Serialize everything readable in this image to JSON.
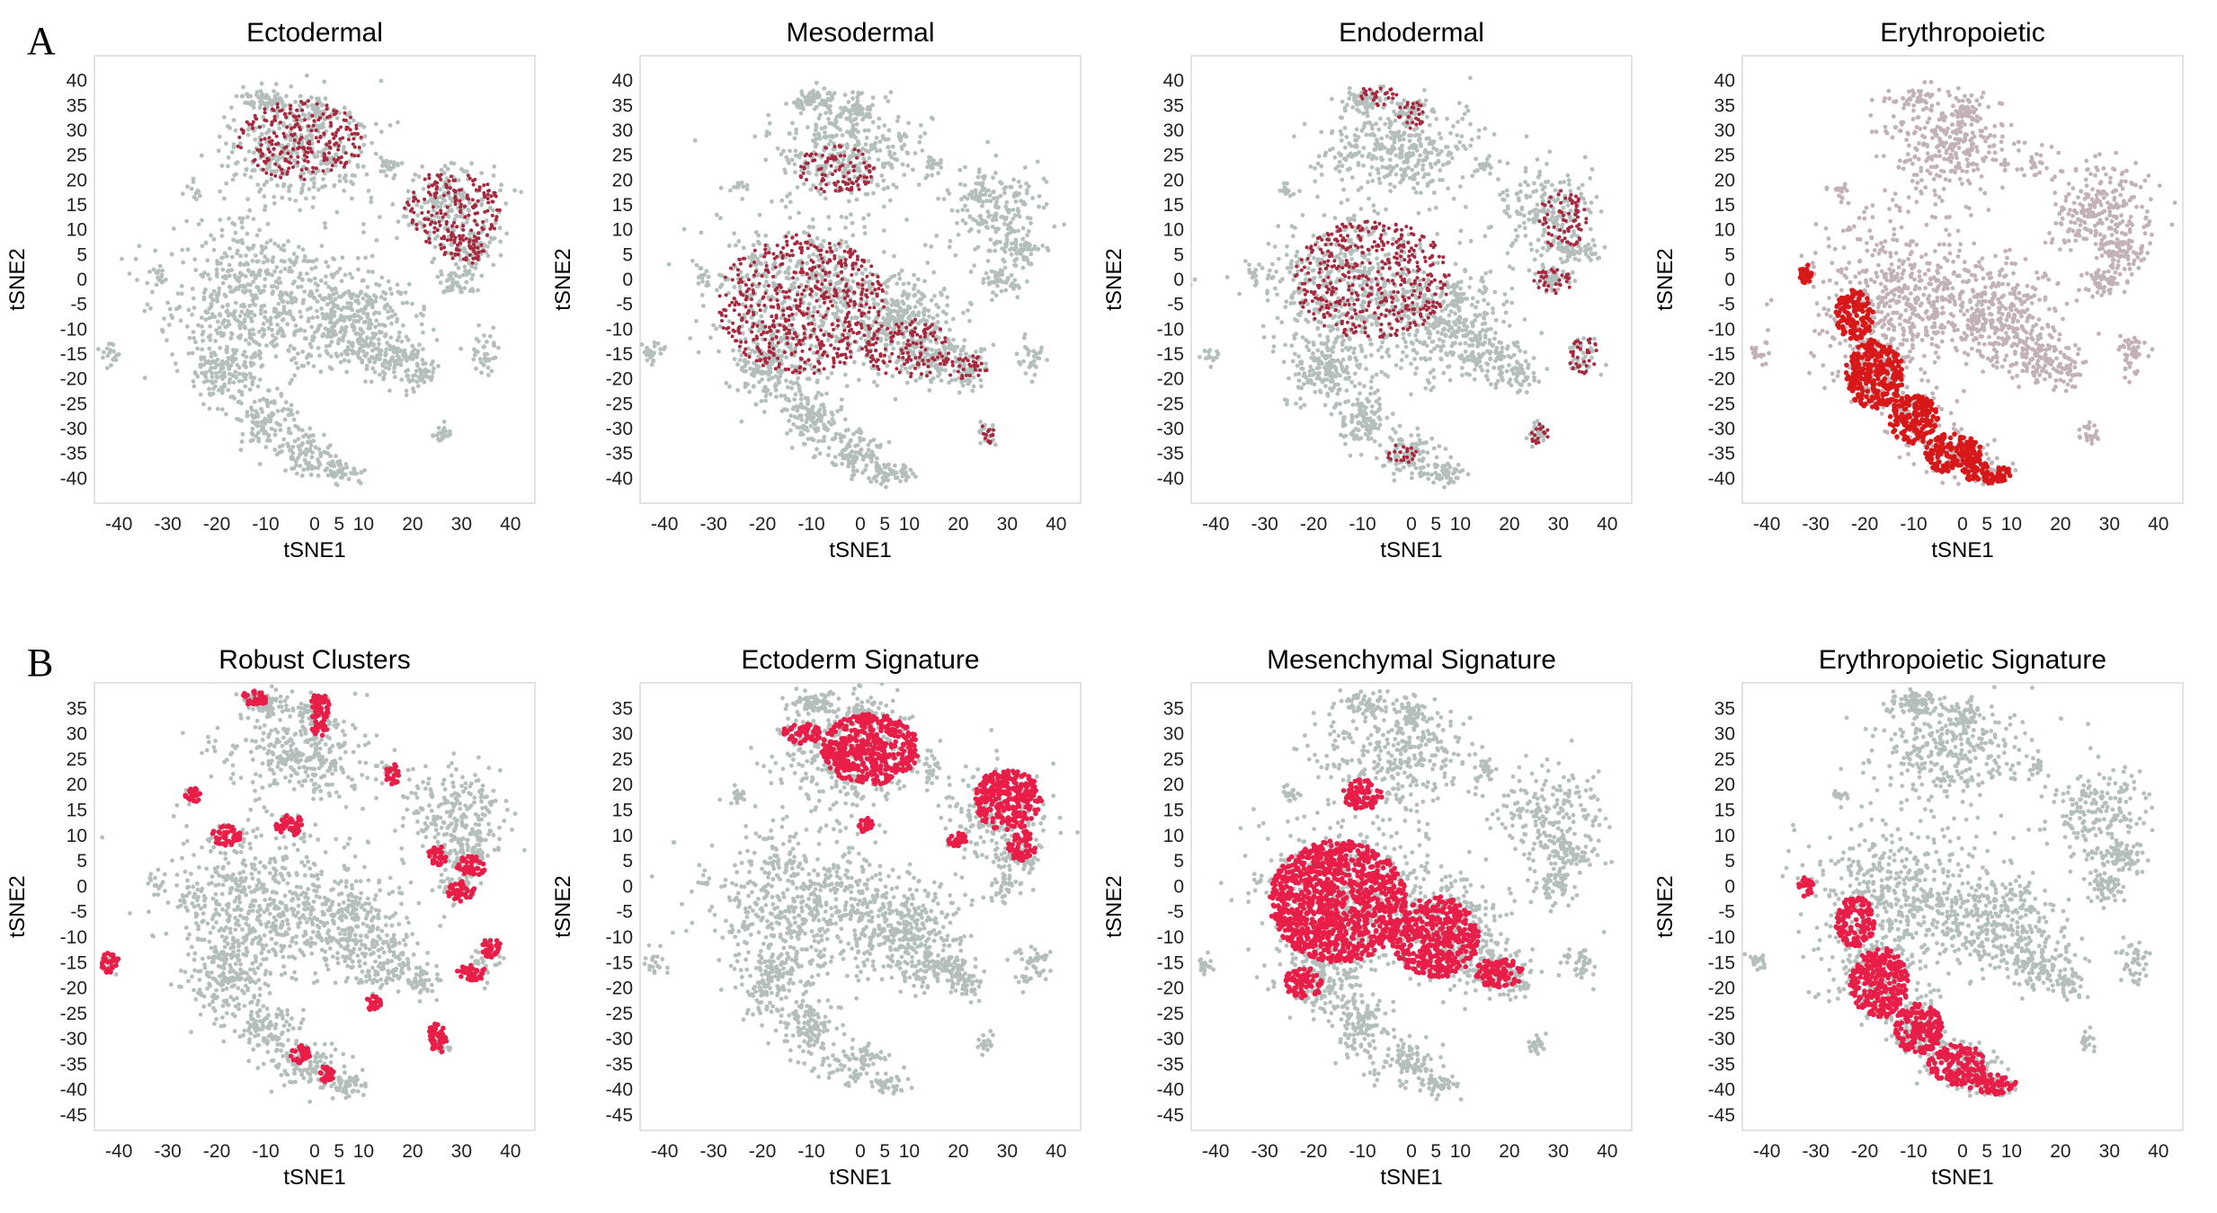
{
  "figure": {
    "rows": [
      {
        "letter": "A"
      },
      {
        "letter": "B"
      }
    ]
  },
  "colors": {
    "background_cells": "#b4bfbc",
    "background_cells_erythro_A": "#c2b2b8",
    "highlight_dark": "#a8283e",
    "highlight_bright": "#e81e48",
    "highlight_red": "#d81818",
    "frame": "#d8d8d8",
    "tick_text": "#222222"
  },
  "chart_data": [
    {
      "type": "scatter",
      "row": 0,
      "col": 0,
      "title": "Ectodermal",
      "xlabel": "tSNE1",
      "ylabel": "tSNE2",
      "xlim": [
        -45,
        45
      ],
      "ylim": [
        -45,
        45
      ],
      "xticks": [
        -40,
        -30,
        -20,
        -10,
        0,
        5,
        10,
        20,
        30,
        40
      ],
      "yticks": [
        -40,
        -35,
        -30,
        -25,
        -20,
        -15,
        -10,
        -5,
        0,
        5,
        10,
        15,
        20,
        25,
        30,
        35,
        40
      ],
      "grid": false,
      "background_color": "#b4bfbc",
      "highlight_color": "#a8283e",
      "highlight_style": "sparse",
      "highlight_regions": [
        {
          "cx": -3,
          "cy": 28,
          "rx": 13,
          "ry": 8
        },
        {
          "cx": 28,
          "cy": 14,
          "rx": 10,
          "ry": 8
        },
        {
          "cx": 31,
          "cy": 6,
          "rx": 5,
          "ry": 3
        }
      ]
    },
    {
      "type": "scatter",
      "row": 0,
      "col": 1,
      "title": "Mesodermal",
      "xlabel": "tSNE1",
      "ylabel": "tSNE2",
      "xlim": [
        -45,
        45
      ],
      "ylim": [
        -45,
        45
      ],
      "xticks": [
        -40,
        -30,
        -20,
        -10,
        0,
        5,
        10,
        20,
        30,
        40
      ],
      "yticks": [
        -40,
        -35,
        -30,
        -25,
        -20,
        -15,
        -10,
        -5,
        0,
        5,
        10,
        15,
        20,
        25,
        30,
        35,
        40
      ],
      "grid": false,
      "background_color": "#b4bfbc",
      "highlight_color": "#a8283e",
      "highlight_style": "sparse",
      "highlight_regions": [
        {
          "cx": -12,
          "cy": -5,
          "rx": 17,
          "ry": 14
        },
        {
          "cx": 10,
          "cy": -14,
          "rx": 9,
          "ry": 6
        },
        {
          "cx": 22,
          "cy": -18,
          "rx": 4,
          "ry": 3
        },
        {
          "cx": 26,
          "cy": -31,
          "rx": 2,
          "ry": 2
        },
        {
          "cx": -5,
          "cy": 22,
          "rx": 8,
          "ry": 5
        }
      ]
    },
    {
      "type": "scatter",
      "row": 0,
      "col": 2,
      "title": "Endodermal",
      "xlabel": "tSNE1",
      "ylabel": "tSNE2",
      "xlim": [
        -45,
        45
      ],
      "ylim": [
        -45,
        45
      ],
      "xticks": [
        -40,
        -30,
        -20,
        -10,
        0,
        5,
        10,
        20,
        30,
        40
      ],
      "yticks": [
        -40,
        -35,
        -30,
        -25,
        -20,
        -15,
        -10,
        -5,
        0,
        5,
        10,
        15,
        20,
        25,
        30,
        35,
        40
      ],
      "grid": false,
      "background_color": "#b4bfbc",
      "highlight_color": "#a8283e",
      "highlight_style": "sparse",
      "highlight_regions": [
        {
          "cx": -7,
          "cy": 37,
          "rx": 4,
          "ry": 2
        },
        {
          "cx": 0,
          "cy": 33,
          "rx": 3,
          "ry": 3
        },
        {
          "cx": -8,
          "cy": 0,
          "rx": 16,
          "ry": 12
        },
        {
          "cx": 29,
          "cy": 0,
          "rx": 4,
          "ry": 3
        },
        {
          "cx": 35,
          "cy": -15,
          "rx": 3,
          "ry": 4
        },
        {
          "cx": -2,
          "cy": -35,
          "rx": 3,
          "ry": 2
        },
        {
          "cx": 26,
          "cy": -31,
          "rx": 2,
          "ry": 2
        },
        {
          "cx": 31,
          "cy": 12,
          "rx": 5,
          "ry": 6
        }
      ]
    },
    {
      "type": "scatter",
      "row": 0,
      "col": 3,
      "title": "Erythropoietic",
      "xlabel": "tSNE1",
      "ylabel": "tSNE2",
      "xlim": [
        -45,
        45
      ],
      "ylim": [
        -45,
        45
      ],
      "xticks": [
        -40,
        -30,
        -20,
        -10,
        0,
        5,
        10,
        20,
        30,
        40
      ],
      "yticks": [
        -40,
        -35,
        -30,
        -25,
        -20,
        -15,
        -10,
        -5,
        0,
        5,
        10,
        15,
        20,
        25,
        30,
        35,
        40
      ],
      "grid": false,
      "background_color": "#c2b2b8",
      "highlight_color": "#d81818",
      "highlight_style": "dense",
      "highlight_regions": [
        {
          "cx": -22,
          "cy": -7,
          "rx": 4,
          "ry": 5
        },
        {
          "cx": -18,
          "cy": -19,
          "rx": 6,
          "ry": 7
        },
        {
          "cx": -10,
          "cy": -28,
          "rx": 5,
          "ry": 5
        },
        {
          "cx": -2,
          "cy": -35,
          "rx": 6,
          "ry": 4
        },
        {
          "cx": 5,
          "cy": -39,
          "rx": 5,
          "ry": 2
        },
        {
          "cx": -32,
          "cy": 1,
          "rx": 1.5,
          "ry": 2
        }
      ]
    },
    {
      "type": "scatter",
      "row": 1,
      "col": 0,
      "title": "Robust Clusters",
      "xlabel": "tSNE1",
      "ylabel": "tSNE2",
      "xlim": [
        -45,
        45
      ],
      "ylim": [
        -48,
        40
      ],
      "xticks": [
        -40,
        -30,
        -20,
        -10,
        0,
        5,
        10,
        20,
        30,
        40
      ],
      "yticks": [
        -45,
        -40,
        -35,
        -30,
        -25,
        -20,
        -15,
        -10,
        -5,
        0,
        5,
        10,
        15,
        20,
        25,
        30,
        35
      ],
      "grid": false,
      "background_color": "#b4bfbc",
      "highlight_color": "#e81e48",
      "highlight_style": "dense",
      "highlight_regions": [
        {
          "cx": -12,
          "cy": 37,
          "rx": 3,
          "ry": 1.5
        },
        {
          "cx": 1,
          "cy": 35,
          "rx": 2,
          "ry": 3
        },
        {
          "cx": 1,
          "cy": 31,
          "rx": 1.5,
          "ry": 1.5
        },
        {
          "cx": 16,
          "cy": 22,
          "rx": 1.5,
          "ry": 2
        },
        {
          "cx": -25,
          "cy": 18,
          "rx": 2,
          "ry": 1.5
        },
        {
          "cx": -18,
          "cy": 10,
          "rx": 3,
          "ry": 2
        },
        {
          "cx": -5,
          "cy": 12,
          "rx": 3,
          "ry": 2
        },
        {
          "cx": 25,
          "cy": 6,
          "rx": 2,
          "ry": 2
        },
        {
          "cx": 32,
          "cy": 4,
          "rx": 3,
          "ry": 2
        },
        {
          "cx": 30,
          "cy": -1,
          "rx": 3,
          "ry": 2
        },
        {
          "cx": 36,
          "cy": -12,
          "rx": 2,
          "ry": 2
        },
        {
          "cx": 32,
          "cy": -17,
          "rx": 3,
          "ry": 1.5
        },
        {
          "cx": -42,
          "cy": -15,
          "rx": 2,
          "ry": 2
        },
        {
          "cx": 25,
          "cy": -30,
          "rx": 2,
          "ry": 3
        },
        {
          "cx": -3,
          "cy": -33,
          "rx": 2,
          "ry": 2
        },
        {
          "cx": 2,
          "cy": -37,
          "rx": 2,
          "ry": 1.5
        },
        {
          "cx": 12,
          "cy": -23,
          "rx": 1.5,
          "ry": 1.5
        }
      ]
    },
    {
      "type": "scatter",
      "row": 1,
      "col": 1,
      "title": "Ectoderm Signature",
      "xlabel": "tSNE1",
      "ylabel": "tSNE2",
      "xlim": [
        -45,
        45
      ],
      "ylim": [
        -48,
        40
      ],
      "xticks": [
        -40,
        -30,
        -20,
        -10,
        0,
        5,
        10,
        20,
        30,
        40
      ],
      "yticks": [
        -45,
        -40,
        -35,
        -30,
        -25,
        -20,
        -15,
        -10,
        -5,
        0,
        5,
        10,
        15,
        20,
        25,
        30,
        35
      ],
      "grid": false,
      "background_color": "#b4bfbc",
      "highlight_color": "#e81e48",
      "highlight_style": "dense",
      "highlight_regions": [
        {
          "cx": 2,
          "cy": 27,
          "rx": 10,
          "ry": 7
        },
        {
          "cx": -12,
          "cy": 30,
          "rx": 4,
          "ry": 2
        },
        {
          "cx": 30,
          "cy": 17,
          "rx": 7,
          "ry": 6
        },
        {
          "cx": 33,
          "cy": 8,
          "rx": 3,
          "ry": 3
        },
        {
          "cx": 20,
          "cy": 9,
          "rx": 2,
          "ry": 1.5
        },
        {
          "cx": 1,
          "cy": 12,
          "rx": 1.5,
          "ry": 1.5
        }
      ]
    },
    {
      "type": "scatter",
      "row": 1,
      "col": 2,
      "title": "Mesenchymal Signature",
      "xlabel": "tSNE1",
      "ylabel": "tSNE2",
      "xlim": [
        -45,
        45
      ],
      "ylim": [
        -48,
        40
      ],
      "xticks": [
        -40,
        -30,
        -20,
        -10,
        0,
        5,
        10,
        20,
        30,
        40
      ],
      "yticks": [
        -45,
        -40,
        -35,
        -30,
        -25,
        -20,
        -15,
        -10,
        -5,
        0,
        5,
        10,
        15,
        20,
        25,
        30,
        35
      ],
      "grid": false,
      "background_color": "#b4bfbc",
      "highlight_color": "#e81e48",
      "highlight_style": "dense",
      "highlight_regions": [
        {
          "cx": -15,
          "cy": -3,
          "rx": 14,
          "ry": 12
        },
        {
          "cx": 5,
          "cy": -10,
          "rx": 9,
          "ry": 8
        },
        {
          "cx": 18,
          "cy": -17,
          "rx": 5,
          "ry": 3
        },
        {
          "cx": -10,
          "cy": 18,
          "rx": 4,
          "ry": 3
        },
        {
          "cx": -22,
          "cy": -19,
          "rx": 4,
          "ry": 3
        }
      ]
    },
    {
      "type": "scatter",
      "row": 1,
      "col": 3,
      "title": "Erythropoietic Signature",
      "xlabel": "tSNE1",
      "ylabel": "tSNE2",
      "xlim": [
        -45,
        45
      ],
      "ylim": [
        -48,
        40
      ],
      "xticks": [
        -40,
        -30,
        -20,
        -10,
        0,
        5,
        10,
        20,
        30,
        40
      ],
      "yticks": [
        -45,
        -40,
        -35,
        -30,
        -25,
        -20,
        -15,
        -10,
        -5,
        0,
        5,
        10,
        15,
        20,
        25,
        30,
        35
      ],
      "grid": false,
      "background_color": "#b4bfbc",
      "highlight_color": "#e81e48",
      "highlight_style": "dense",
      "highlight_regions": [
        {
          "cx": -22,
          "cy": -7,
          "rx": 4,
          "ry": 5
        },
        {
          "cx": -17,
          "cy": -19,
          "rx": 6,
          "ry": 7
        },
        {
          "cx": -9,
          "cy": -28,
          "rx": 5,
          "ry": 5
        },
        {
          "cx": -1,
          "cy": -35,
          "rx": 6,
          "ry": 4
        },
        {
          "cx": 6,
          "cy": -39,
          "rx": 5,
          "ry": 2
        },
        {
          "cx": -32,
          "cy": 0,
          "rx": 1.5,
          "ry": 2
        }
      ]
    }
  ]
}
